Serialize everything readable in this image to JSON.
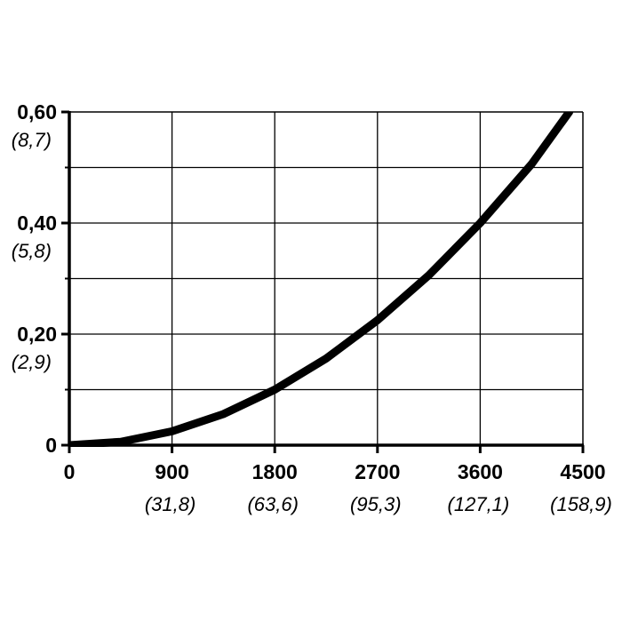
{
  "chart_data": {
    "type": "line",
    "title": "",
    "xlabel": "",
    "ylabel": "",
    "xlim": [
      0,
      4500
    ],
    "ylim": [
      0,
      0.6
    ],
    "grid": true,
    "x_ticks": [
      {
        "value": 0,
        "label": "0",
        "sublabel": ""
      },
      {
        "value": 900,
        "label": "900",
        "sublabel": "(31,8)"
      },
      {
        "value": 1800,
        "label": "1800",
        "sublabel": "(63,6)"
      },
      {
        "value": 2700,
        "label": "2700",
        "sublabel": "(95,3)"
      },
      {
        "value": 3600,
        "label": "3600",
        "sublabel": "(127,1)"
      },
      {
        "value": 4500,
        "label": "4500",
        "sublabel": "(158,9)"
      }
    ],
    "y_ticks": [
      {
        "value": 0,
        "label": "0",
        "sublabel": ""
      },
      {
        "value": 0.2,
        "label": "0,20",
        "sublabel": "(2,9)"
      },
      {
        "value": 0.4,
        "label": "0,40",
        "sublabel": "(5,8)"
      },
      {
        "value": 0.6,
        "label": "0,60",
        "sublabel": "(8,7)"
      }
    ],
    "y_minor_ticks": [
      0.1,
      0.3,
      0.5
    ],
    "series": [
      {
        "color": "#000000",
        "x": [
          0,
          450,
          900,
          1350,
          1800,
          2250,
          2700,
          3150,
          3600,
          4050,
          4380
        ],
        "y": [
          0,
          0.006,
          0.025,
          0.056,
          0.1,
          0.156,
          0.225,
          0.306,
          0.4,
          0.506,
          0.6
        ]
      }
    ]
  }
}
